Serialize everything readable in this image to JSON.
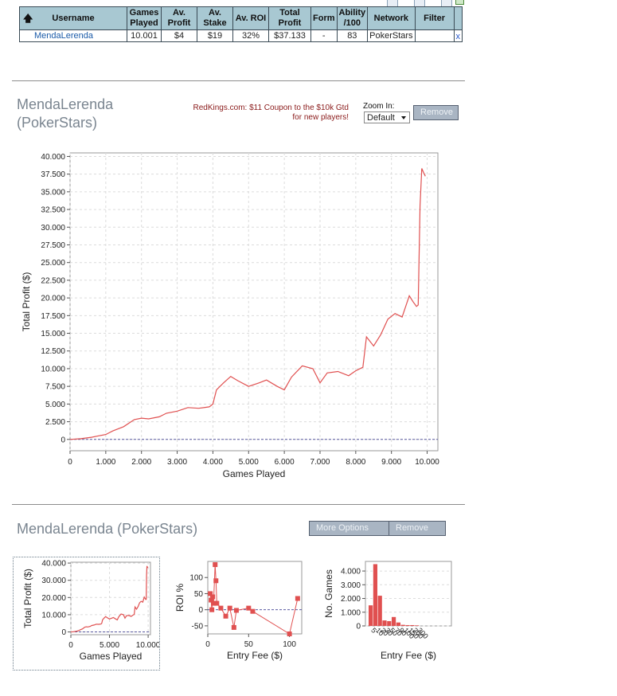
{
  "table": {
    "headers": [
      {
        "label": "Username"
      },
      {
        "label": "Games Played"
      },
      {
        "label": "Av. Profit"
      },
      {
        "label": "Av. Stake"
      },
      {
        "label": "Av. ROI"
      },
      {
        "label": "Total Profit"
      },
      {
        "label": "Form"
      },
      {
        "label": "Ability /100"
      },
      {
        "label": "Network"
      },
      {
        "label": "Filter"
      }
    ],
    "row": {
      "username": "MendaLerenda",
      "games_played": "10.001",
      "av_profit": "$4",
      "av_stake": "$19",
      "av_roi": "32%",
      "total_profit": "$37.133",
      "form": "-",
      "ability": "83",
      "network": "PokerStars",
      "filter": "",
      "remove_x": "x"
    },
    "sort_icon": "up-arrow-icon"
  },
  "section1": {
    "title_line1": "MendaLerenda",
    "title_line2": "(PokerStars)",
    "promo_line1": "RedKings.com: $11 Coupon to the $10k Gtd",
    "promo_line2": "for new players!",
    "zoom_label": "Zoom In:",
    "zoom_value": "Default",
    "remove_label": "Remove"
  },
  "section2": {
    "title": "MendaLerenda (PokerStars)",
    "more_options_label": "More Options",
    "remove_label": "Remove"
  },
  "colors": {
    "line": "#e05050",
    "header_bg": "#a8c8d2",
    "button_bg": "#a9b5c3"
  },
  "chart_data": [
    {
      "type": "line",
      "title": "",
      "xlabel": "Games Played",
      "ylabel": "Total Profit ($)",
      "xlim": [
        0,
        10300
      ],
      "ylim": [
        -1600,
        40500
      ],
      "x_ticks": [
        0,
        1000,
        2000,
        3000,
        4000,
        5000,
        6000,
        7000,
        8000,
        9000,
        10000
      ],
      "x_tick_labels": [
        "0",
        "1.000",
        "2.000",
        "3.000",
        "4.000",
        "5.000",
        "6.000",
        "7.000",
        "8.000",
        "9.000",
        "10.000"
      ],
      "y_ticks": [
        0,
        2500,
        5000,
        7500,
        10000,
        12500,
        15000,
        17500,
        20000,
        22500,
        25000,
        27500,
        30000,
        32500,
        35000,
        37500,
        40000
      ],
      "y_tick_labels": [
        "0",
        "2.500",
        "5.000",
        "7.500",
        "10.000",
        "12.500",
        "15.000",
        "17.500",
        "20.000",
        "22.500",
        "25.000",
        "27.500",
        "30.000",
        "32.500",
        "35.000",
        "37.500",
        "40.000"
      ],
      "grid": true,
      "x": [
        0,
        300,
        600,
        800,
        1000,
        1200,
        1500,
        1800,
        2000,
        2200,
        2500,
        2700,
        3000,
        3300,
        3600,
        3900,
        4000,
        4100,
        4300,
        4500,
        4700,
        5000,
        5300,
        5500,
        5800,
        6000,
        6200,
        6500,
        6800,
        7000,
        7200,
        7500,
        7800,
        8000,
        8200,
        8300,
        8500,
        8700,
        8900,
        9100,
        9300,
        9500,
        9600,
        9700,
        9750,
        9800,
        9850,
        9900,
        9950
      ],
      "y": [
        0,
        100,
        300,
        500,
        700,
        1200,
        1800,
        2800,
        3000,
        2900,
        3200,
        3700,
        4000,
        4500,
        4400,
        4600,
        5000,
        7000,
        8000,
        8900,
        8300,
        7500,
        8000,
        8400,
        7500,
        7000,
        8800,
        10400,
        10000,
        8000,
        9400,
        9600,
        9000,
        9700,
        10200,
        14500,
        13200,
        14800,
        17000,
        17800,
        17300,
        20300,
        19500,
        18800,
        19000,
        33000,
        38300,
        37700,
        37200
      ]
    },
    {
      "type": "line",
      "xlabel": "Games Played",
      "ylabel": "Total Profit ($)",
      "xlim": [
        0,
        10300
      ],
      "ylim": [
        -1600,
        40500
      ],
      "x_ticks": [
        0,
        5000,
        10000
      ],
      "x_tick_labels": [
        "0",
        "5.000",
        "10.000"
      ],
      "y_ticks": [
        0,
        10000,
        20000,
        30000,
        40000
      ],
      "y_tick_labels": [
        "0",
        "10.000",
        "20.000",
        "30.000",
        "40.000"
      ],
      "grid": true,
      "uses_series_from_chart": 0
    },
    {
      "type": "scatter",
      "xlabel": "Entry Fee ($)",
      "ylabel": "ROI %",
      "xlim": [
        0,
        115
      ],
      "ylim": [
        -75,
        150
      ],
      "x_ticks": [
        0,
        50,
        100
      ],
      "x_tick_labels": [
        "0",
        "50",
        "100"
      ],
      "y_ticks": [
        -50,
        0,
        50,
        100
      ],
      "y_tick_labels": [
        "-50",
        "0",
        "50",
        "100"
      ],
      "points": [
        {
          "x": 3,
          "y": 50
        },
        {
          "x": 4,
          "y": 30
        },
        {
          "x": 5,
          "y": 0
        },
        {
          "x": 6,
          "y": 40
        },
        {
          "x": 7,
          "y": 20
        },
        {
          "x": 9,
          "y": 140
        },
        {
          "x": 10,
          "y": 90
        },
        {
          "x": 11,
          "y": 20
        },
        {
          "x": 16,
          "y": 5
        },
        {
          "x": 22,
          "y": -20
        },
        {
          "x": 27,
          "y": 5
        },
        {
          "x": 32,
          "y": -55
        },
        {
          "x": 35,
          "y": -2
        },
        {
          "x": 50,
          "y": 5
        },
        {
          "x": 55,
          "y": -5
        },
        {
          "x": 100,
          "y": -75
        },
        {
          "x": 110,
          "y": 35
        }
      ]
    },
    {
      "type": "bar",
      "xlabel": "Entry Fee ($)",
      "ylabel": "No. Games",
      "ylim": [
        0,
        4700
      ],
      "y_ticks": [
        0,
        1000,
        2000,
        3000,
        4000
      ],
      "y_tick_labels": [
        "0",
        "1.000",
        "2.000",
        "3.000",
        "4.000"
      ],
      "x_tick_labels": [
        "5",
        "10",
        "20",
        "30",
        "50",
        "70",
        "90",
        "100",
        "150",
        "200",
        "300"
      ],
      "values": [
        1500,
        4500,
        2200,
        400,
        350,
        650,
        250,
        80,
        60,
        60,
        40
      ]
    }
  ]
}
